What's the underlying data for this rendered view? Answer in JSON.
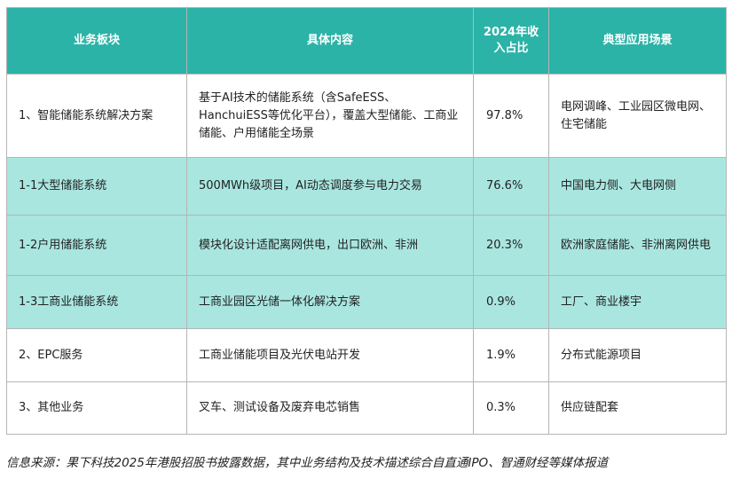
{
  "table": {
    "headers": [
      "业务板块",
      "具体内容",
      "2024年收入占比",
      "典型应用场景"
    ],
    "rows": [
      {
        "segment": "1、智能储能系统解决方案",
        "content": "基于AI技术的储能系统（含SafeESS、HanchuiESS等优化平台），覆盖大型储能、工商业储能、户用储能全场景",
        "share": "97.8%",
        "scenario": "电网调峰、工业园区微电网、住宅储能"
      },
      {
        "segment": "1-1大型储能系统",
        "content": "500MWh级项目，AI动态调度参与电力交易",
        "share": "76.6%",
        "scenario": "中国电力侧、大电网侧"
      },
      {
        "segment": "1-2户用储能系统",
        "content": "模块化设计适配离网供电，出口欧洲、非洲",
        "share": "20.3%",
        "scenario": "欧洲家庭储能、非洲离网供电"
      },
      {
        "segment": "1-3工商业储能系统",
        "content": "工商业园区光储一体化解决方案",
        "share": "0.9%",
        "scenario": "工厂、商业楼宇"
      },
      {
        "segment": "2、EPC服务",
        "content": "工商业储能项目及光伏电站开发",
        "share": "1.9%",
        "scenario": "分布式能源项目"
      },
      {
        "segment": "3、其他业务",
        "content": "叉车、测试设备及废弃电芯销售",
        "share": "0.3%",
        "scenario": "供应链配套"
      }
    ]
  },
  "source_note": "信息来源：果下科技2025年港股招股书披露数据，其中业务结构及技术描述综合自直通IPO、智通财经等媒体报道",
  "colors": {
    "header_bg": "#2bb3a7",
    "sub_row_bg": "#a9e6e0",
    "border": "#b5b5b5"
  }
}
